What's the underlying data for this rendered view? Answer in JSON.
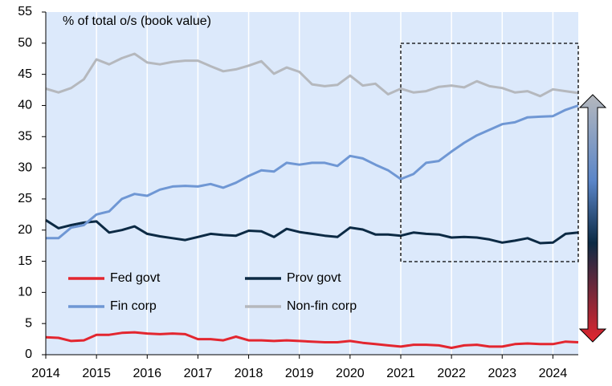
{
  "chart_data": {
    "type": "line",
    "annotation": "% of total o/s (book value)",
    "x": [
      2014,
      2014.25,
      2014.5,
      2014.75,
      2015,
      2015.25,
      2015.5,
      2015.75,
      2016,
      2016.25,
      2016.5,
      2016.75,
      2017,
      2017.25,
      2017.5,
      2017.75,
      2018,
      2018.25,
      2018.5,
      2018.75,
      2019,
      2019.25,
      2019.5,
      2019.75,
      2020,
      2020.25,
      2020.5,
      2020.75,
      2021,
      2021.25,
      2021.5,
      2021.75,
      2022,
      2022.25,
      2022.5,
      2022.75,
      2023,
      2023.25,
      2023.5,
      2023.75,
      2024,
      2024.25,
      2024.5
    ],
    "series": [
      {
        "name": "Fed govt",
        "color": "#e3262f",
        "values": [
          2.8,
          2.7,
          2.2,
          2.3,
          3.2,
          3.2,
          3.5,
          3.6,
          3.4,
          3.3,
          3.4,
          3.3,
          2.5,
          2.5,
          2.3,
          2.9,
          2.3,
          2.3,
          2.2,
          2.3,
          2.2,
          2.1,
          2.0,
          2.0,
          2.2,
          1.9,
          1.7,
          1.5,
          1.3,
          1.6,
          1.6,
          1.5,
          1.1,
          1.5,
          1.6,
          1.3,
          1.3,
          1.7,
          1.8,
          1.7,
          1.7,
          2.1,
          2.0
        ]
      },
      {
        "name": "Prov govt",
        "color": "#0c2a44",
        "values": [
          21.6,
          20.3,
          20.8,
          21.2,
          21.4,
          19.6,
          20.0,
          20.6,
          19.4,
          19.0,
          18.7,
          18.4,
          18.9,
          19.4,
          19.2,
          19.1,
          19.9,
          19.8,
          18.9,
          20.2,
          19.7,
          19.4,
          19.1,
          18.9,
          20.4,
          20.1,
          19.3,
          19.3,
          19.1,
          19.6,
          19.4,
          19.3,
          18.8,
          18.9,
          18.8,
          18.5,
          18.0,
          18.3,
          18.7,
          17.9,
          18.0,
          19.4,
          19.6
        ]
      },
      {
        "name": "Fin corp",
        "color": "#6f97d4",
        "values": [
          18.7,
          18.7,
          20.4,
          20.8,
          22.5,
          23.0,
          25.0,
          25.8,
          25.5,
          26.5,
          27.0,
          27.1,
          27.0,
          27.4,
          26.8,
          27.6,
          28.7,
          29.6,
          29.4,
          30.8,
          30.5,
          30.8,
          30.8,
          30.3,
          31.9,
          31.5,
          30.5,
          29.6,
          28.2,
          29.0,
          30.8,
          31.1,
          32.6,
          34.0,
          35.2,
          36.1,
          37.0,
          37.3,
          38.1,
          38.2,
          38.3,
          39.3,
          40.0
        ]
      },
      {
        "name": "Non-fin corp",
        "color": "#b5b8bd",
        "values": [
          42.7,
          42.1,
          42.8,
          44.2,
          47.4,
          46.6,
          47.6,
          48.3,
          46.9,
          46.6,
          47.0,
          47.2,
          47.2,
          46.3,
          45.5,
          45.8,
          46.4,
          47.1,
          45.1,
          46.1,
          45.4,
          43.4,
          43.1,
          43.3,
          44.8,
          43.2,
          43.5,
          41.8,
          42.7,
          42.1,
          42.3,
          43.0,
          43.2,
          42.9,
          43.9,
          43.1,
          42.8,
          42.1,
          42.3,
          41.5,
          42.6,
          42.3,
          42.0
        ]
      }
    ],
    "xlim": [
      2014,
      2024.5
    ],
    "xticks": [
      2014,
      2015,
      2016,
      2017,
      2018,
      2019,
      2020,
      2021,
      2022,
      2023,
      2024
    ],
    "ylim": [
      0,
      55
    ],
    "yticks": [
      0,
      5,
      10,
      15,
      20,
      25,
      30,
      35,
      40,
      45,
      50,
      55
    ],
    "grid": "x"
  }
}
